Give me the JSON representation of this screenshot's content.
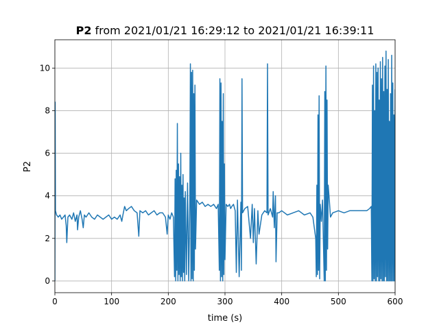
{
  "chart_data": {
    "type": "line",
    "title": [
      "P2",
      "from 2021/01/21 16:29:12 to 2021/01/21 16:39:11"
    ],
    "x_label": "time (s)",
    "y_label": "P2",
    "xlim": [
      0,
      600
    ],
    "ylim": [
      -0.55,
      11.33
    ],
    "xticks": [
      0,
      100,
      200,
      300,
      400,
      500,
      600
    ],
    "yticks": [
      0,
      2,
      4,
      6,
      8,
      10
    ],
    "grid": true,
    "series": [
      {
        "name": "P2",
        "color": "#1f77b4",
        "x": [
          0,
          0.5,
          1,
          3,
          6,
          9,
          12,
          15,
          18,
          20,
          21,
          23,
          26,
          30,
          33,
          36,
          39,
          40,
          42,
          45,
          48,
          50,
          52,
          55,
          60,
          65,
          70,
          75,
          80,
          85,
          90,
          95,
          100,
          105,
          110,
          115,
          118,
          120,
          123,
          126,
          130,
          135,
          140,
          145,
          148,
          150,
          155,
          160,
          165,
          170,
          175,
          180,
          185,
          190,
          195,
          198,
          200,
          203,
          206,
          209,
          211,
          212,
          213,
          214,
          215,
          216,
          217,
          218,
          219,
          220,
          221,
          222,
          223,
          224,
          225,
          226,
          227,
          228,
          229,
          230,
          232,
          234,
          236,
          238,
          239,
          240,
          241,
          242,
          243,
          244,
          245,
          246,
          247,
          248,
          250,
          255,
          260,
          265,
          270,
          275,
          280,
          285,
          288,
          290,
          291,
          292,
          293,
          294,
          295,
          296,
          297,
          298,
          299,
          300,
          302,
          305,
          308,
          310,
          312,
          315,
          318,
          320,
          322,
          325,
          328,
          329,
          330,
          331,
          335,
          340,
          345,
          348,
          350,
          352,
          355,
          358,
          360,
          365,
          370,
          374,
          375,
          376,
          380,
          384,
          385,
          387,
          389,
          390,
          392,
          395,
          400,
          410,
          420,
          430,
          440,
          450,
          455,
          460,
          461,
          462,
          463,
          464,
          465,
          466,
          467,
          468,
          470,
          472,
          475,
          476,
          477,
          478,
          479,
          480,
          481,
          482,
          484,
          486,
          490,
          500,
          510,
          520,
          530,
          540,
          550,
          555,
          558,
          559,
          560,
          561,
          562,
          563,
          564,
          565,
          566,
          567,
          568,
          569,
          570,
          571,
          572,
          573,
          574,
          575,
          576,
          577,
          578,
          579,
          580,
          581,
          582,
          583,
          584,
          585,
          586,
          587,
          588,
          589,
          590,
          591,
          592,
          593,
          594,
          595,
          596,
          597,
          598,
          599,
          600
        ],
        "values": [
          0,
          8.4,
          3.3,
          3.1,
          3.0,
          3.1,
          2.9,
          3.0,
          3.1,
          2.6,
          1.8,
          3.0,
          3.1,
          2.9,
          3.2,
          2.8,
          3.1,
          2.4,
          3.0,
          3.3,
          2.9,
          2.5,
          3.1,
          3.0,
          3.2,
          3.0,
          2.9,
          3.1,
          3.0,
          2.9,
          3.0,
          3.1,
          2.9,
          3.0,
          2.9,
          3.1,
          2.8,
          3.1,
          3.5,
          3.3,
          3.4,
          3.5,
          3.3,
          3.2,
          2.1,
          3.3,
          3.2,
          3.3,
          3.1,
          3.2,
          3.3,
          3.1,
          3.2,
          3.2,
          3.0,
          2.2,
          3.1,
          2.9,
          3.2,
          3.0,
          0.2,
          4.8,
          0,
          5.2,
          0.5,
          7.4,
          0,
          5.5,
          0.3,
          4.9,
          0,
          6.0,
          0.2,
          4.5,
          0,
          5.0,
          0.4,
          3.9,
          0,
          4.2,
          0.3,
          4.6,
          0,
          3.8,
          10.2,
          0,
          9.8,
          0.1,
          9.9,
          0,
          8.8,
          0.5,
          9.2,
          1.5,
          3.8,
          3.6,
          3.7,
          3.5,
          3.6,
          3.5,
          3.6,
          3.4,
          3.6,
          0.5,
          9.5,
          0,
          9.3,
          0.2,
          7.5,
          0,
          8.8,
          0.3,
          5.5,
          1.0,
          3.6,
          3.5,
          3.6,
          3.4,
          3.5,
          3.6,
          3.3,
          0.4,
          3.8,
          0.2,
          3.7,
          0.5,
          9.5,
          3.2,
          3.4,
          3.5,
          2.0,
          3.6,
          1.8,
          3.4,
          0.8,
          3.3,
          2.2,
          3.1,
          3.3,
          3.2,
          10.2,
          3.1,
          3.4,
          3.0,
          4.2,
          2.5,
          4.0,
          0.9,
          3.2,
          3.2,
          3.3,
          3.1,
          3.2,
          3.3,
          3.1,
          3.2,
          3.0,
          2.0,
          0.2,
          4.5,
          0.3,
          7.8,
          0.5,
          8.7,
          0.1,
          3.6,
          2.8,
          3.8,
          0,
          8.9,
          0,
          10.1,
          0.5,
          8.5,
          1.5,
          4.5,
          3.8,
          3.0,
          3.2,
          3.3,
          3.2,
          3.3,
          3.3,
          3.3,
          3.3,
          3.4,
          3.5,
          0,
          9.2,
          0,
          10.1,
          0.1,
          8.0,
          0,
          10.2,
          0,
          9.8,
          0.2,
          10.0,
          0,
          8.5,
          0,
          10.3,
          0.1,
          9.5,
          0,
          10.5,
          0,
          8.9,
          0,
          10.1,
          0.2,
          10.8,
          0,
          9.0,
          0,
          10.4,
          0,
          7.5,
          0,
          8.8,
          0,
          10.6,
          0,
          9.3,
          0,
          7.8,
          0,
          9.0
        ]
      }
    ]
  }
}
